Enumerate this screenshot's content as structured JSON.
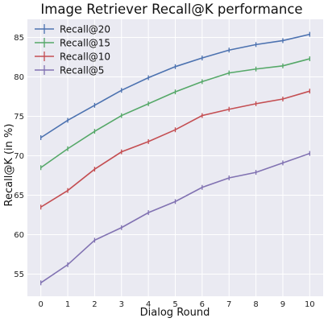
{
  "chart_data": {
    "type": "line",
    "title": "Image Retriever Recall@K performance",
    "xlabel": "Dialog Round",
    "ylabel": "Recall@K (in %)",
    "x": [
      0,
      1,
      2,
      3,
      4,
      5,
      6,
      7,
      8,
      9,
      10
    ],
    "xlim": [
      -0.5,
      10.5
    ],
    "ylim": [
      52.2,
      87.3
    ],
    "xticks": [
      0,
      1,
      2,
      3,
      4,
      5,
      6,
      7,
      8,
      9,
      10
    ],
    "yticks": [
      55,
      60,
      65,
      70,
      75,
      80,
      85
    ],
    "grid": true,
    "background": "#eaeaf2",
    "legend_position": "top-left",
    "series": [
      {
        "name": "Recall@20",
        "color": "#4c72b0",
        "values": [
          72.3,
          74.5,
          76.4,
          78.3,
          79.9,
          81.3,
          82.4,
          83.4,
          84.1,
          84.6,
          85.4
        ]
      },
      {
        "name": "Recall@15",
        "color": "#55a868",
        "values": [
          68.5,
          70.9,
          73.1,
          75.1,
          76.6,
          78.1,
          79.4,
          80.5,
          81.0,
          81.4,
          82.3
        ]
      },
      {
        "name": "Recall@10",
        "color": "#c44e52",
        "values": [
          63.5,
          65.6,
          68.3,
          70.5,
          71.8,
          73.3,
          75.1,
          75.9,
          76.6,
          77.2,
          78.2
        ]
      },
      {
        "name": "Recall@5",
        "color": "#8172b2",
        "values": [
          53.9,
          56.2,
          59.3,
          60.9,
          62.8,
          64.2,
          66.0,
          67.2,
          67.9,
          69.1,
          70.3
        ]
      }
    ]
  }
}
